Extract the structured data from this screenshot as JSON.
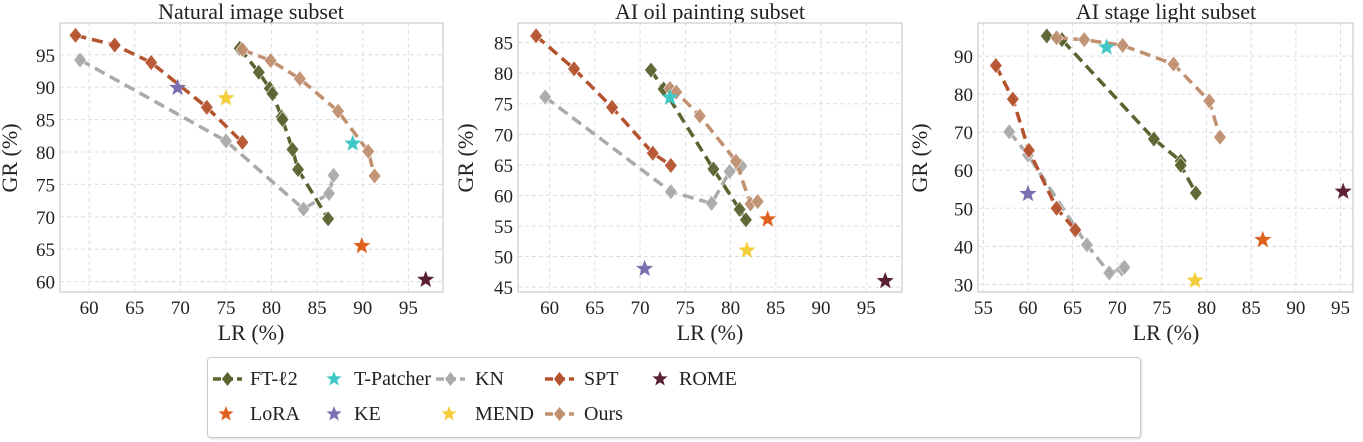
{
  "chart_data": [
    {
      "type": "scatter",
      "title": "Natural image subset",
      "xlabel": "LR (%)",
      "ylabel": "GR (%)",
      "xlim": [
        56.8,
        98.8
      ],
      "ylim": [
        58.4,
        99.9
      ],
      "xticks": [
        60,
        65,
        70,
        75,
        80,
        85,
        90,
        95
      ],
      "yticks": [
        60,
        65,
        70,
        75,
        80,
        85,
        90,
        95
      ],
      "grid": true,
      "series": [
        {
          "name": "FT-ℓ2",
          "kind": "line",
          "points": [
            [
              76.5,
              96.0
            ],
            [
              78.6,
              92.3
            ],
            [
              79.8,
              89.8
            ],
            [
              80.1,
              89.0
            ],
            [
              81.1,
              85.4
            ],
            [
              81.2,
              85.0
            ],
            [
              82.3,
              80.4
            ],
            [
              82.9,
              77.3
            ],
            [
              86.2,
              69.7
            ]
          ]
        },
        {
          "name": "KN",
          "kind": "line",
          "points": [
            [
              59.0,
              94.2
            ],
            [
              75.0,
              81.7
            ],
            [
              83.5,
              71.2
            ],
            [
              86.3,
              73.6
            ],
            [
              86.8,
              76.4
            ]
          ]
        },
        {
          "name": "SPT",
          "kind": "line",
          "points": [
            [
              58.5,
              98.0
            ],
            [
              62.8,
              96.5
            ],
            [
              66.8,
              93.8
            ],
            [
              72.9,
              86.9
            ],
            [
              76.8,
              81.5
            ]
          ]
        },
        {
          "name": "Ours",
          "kind": "line",
          "points": [
            [
              76.8,
              95.8
            ],
            [
              79.9,
              94.1
            ],
            [
              83.1,
              91.3
            ],
            [
              87.3,
              86.3
            ],
            [
              90.6,
              80.1
            ],
            [
              91.3,
              76.3
            ]
          ]
        },
        {
          "name": "T-Patcher",
          "kind": "star",
          "points": [
            [
              88.9,
              81.3
            ]
          ]
        },
        {
          "name": "LoRA",
          "kind": "star",
          "points": [
            [
              89.9,
              65.5
            ]
          ]
        },
        {
          "name": "KE",
          "kind": "star",
          "points": [
            [
              69.7,
              89.9
            ]
          ]
        },
        {
          "name": "MEND",
          "kind": "star",
          "points": [
            [
              75.0,
              88.3
            ]
          ]
        },
        {
          "name": "ROME",
          "kind": "star",
          "points": [
            [
              96.9,
              60.3
            ]
          ]
        }
      ]
    },
    {
      "type": "scatter",
      "title": "AI oil painting subset",
      "xlabel": "LR (%)",
      "ylabel": "GR (%)",
      "xlim": [
        56.5,
        98.95
      ],
      "ylim": [
        44.2,
        88.2
      ],
      "xticks": [
        60,
        65,
        70,
        75,
        80,
        85,
        90,
        95
      ],
      "yticks": [
        45,
        50,
        55,
        60,
        65,
        70,
        75,
        80,
        85
      ],
      "grid": true,
      "series": [
        {
          "name": "FT-ℓ2",
          "kind": "line",
          "points": [
            [
              71.2,
              80.5
            ],
            [
              72.6,
              77.4
            ],
            [
              78.1,
              64.3
            ],
            [
              81.0,
              57.7
            ],
            [
              81.7,
              56.0
            ]
          ]
        },
        {
          "name": "KN",
          "kind": "line",
          "points": [
            [
              59.5,
              76.1
            ],
            [
              73.4,
              60.6
            ],
            [
              77.9,
              58.7
            ],
            [
              79.9,
              63.9
            ],
            [
              81.2,
              64.8
            ]
          ]
        },
        {
          "name": "SPT",
          "kind": "line",
          "points": [
            [
              58.5,
              86.1
            ],
            [
              62.7,
              80.7
            ],
            [
              66.9,
              74.4
            ],
            [
              71.4,
              66.9
            ],
            [
              73.4,
              64.9
            ]
          ]
        },
        {
          "name": "Ours",
          "kind": "line",
          "points": [
            [
              73.3,
              77.5
            ],
            [
              74.0,
              76.9
            ],
            [
              76.6,
              73.0
            ],
            [
              80.6,
              65.6
            ],
            [
              82.2,
              58.6
            ],
            [
              83.0,
              59.0
            ]
          ]
        },
        {
          "name": "T-Patcher",
          "kind": "star",
          "points": [
            [
              73.3,
              76.0
            ]
          ]
        },
        {
          "name": "LoRA",
          "kind": "star",
          "points": [
            [
              84.1,
              56.1
            ]
          ]
        },
        {
          "name": "KE",
          "kind": "star",
          "points": [
            [
              70.5,
              48.0
            ]
          ]
        },
        {
          "name": "MEND",
          "kind": "star",
          "points": [
            [
              81.8,
              51.0
            ]
          ]
        },
        {
          "name": "ROME",
          "kind": "star",
          "points": [
            [
              97.1,
              46.0
            ]
          ]
        }
      ]
    },
    {
      "type": "scatter",
      "title": "AI stage light subset",
      "xlabel": "LR (%)",
      "ylabel": "GR (%)",
      "xlim": [
        54.4,
        96.4
      ],
      "ylim": [
        28.0,
        98.7
      ],
      "xticks": [
        55,
        60,
        65,
        70,
        75,
        80,
        85,
        90,
        95
      ],
      "yticks": [
        30,
        40,
        50,
        60,
        70,
        80,
        90
      ],
      "grid": true,
      "series": [
        {
          "name": "FT-ℓ2",
          "kind": "line",
          "points": [
            [
              62.1,
              95.3
            ],
            [
              63.8,
              94.3
            ],
            [
              74.1,
              68.2
            ],
            [
              77.1,
              62.4
            ],
            [
              77.1,
              61.3
            ],
            [
              78.8,
              54.0
            ]
          ]
        },
        {
          "name": "KN",
          "kind": "line",
          "points": [
            [
              57.9,
              70.1
            ],
            [
              60.0,
              64.0
            ],
            [
              66.6,
              40.4
            ],
            [
              69.1,
              33.0
            ],
            [
              70.5,
              34.0
            ],
            [
              70.8,
              34.5
            ]
          ]
        },
        {
          "name": "SPT",
          "kind": "line",
          "points": [
            [
              56.4,
              87.5
            ],
            [
              58.3,
              78.7
            ],
            [
              60.1,
              65.2
            ],
            [
              63.2,
              50.0
            ],
            [
              65.3,
              44.3
            ]
          ]
        },
        {
          "name": "Ours",
          "kind": "line",
          "points": [
            [
              63.2,
              94.8
            ],
            [
              66.3,
              94.3
            ],
            [
              70.6,
              92.8
            ],
            [
              76.3,
              87.9
            ],
            [
              80.3,
              78.2
            ],
            [
              81.5,
              68.7
            ]
          ]
        },
        {
          "name": "T-Patcher",
          "kind": "star",
          "points": [
            [
              68.8,
              92.3
            ]
          ]
        },
        {
          "name": "LoRA",
          "kind": "star",
          "points": [
            [
              86.3,
              41.7
            ]
          ]
        },
        {
          "name": "KE",
          "kind": "star",
          "points": [
            [
              60.0,
              53.8
            ]
          ]
        },
        {
          "name": "MEND",
          "kind": "star",
          "points": [
            [
              78.7,
              31.0
            ]
          ]
        },
        {
          "name": "ROME",
          "kind": "star",
          "points": [
            [
              95.3,
              54.4
            ]
          ]
        }
      ]
    }
  ],
  "colors": {
    "FT-ℓ2": "#5b6330",
    "T-Patcher": "#3ec8c8",
    "KN": "#aaaaaa",
    "SPT": "#b5532e",
    "ROME": "#5a2035",
    "LoRA": "#e0601e",
    "KE": "#7a6fb0",
    "MEND": "#f5cc3a",
    "Ours": "#c09070"
  },
  "legend": {
    "placement": "bottom-center",
    "items": [
      {
        "label": "FT-ℓ2",
        "kind": "line"
      },
      {
        "label": "T-Patcher",
        "kind": "star"
      },
      {
        "label": "KN",
        "kind": "line"
      },
      {
        "label": "SPT",
        "kind": "line"
      },
      {
        "label": "ROME",
        "kind": "star"
      },
      {
        "label": "LoRA",
        "kind": "star"
      },
      {
        "label": "KE",
        "kind": "star"
      },
      {
        "label": "MEND",
        "kind": "star"
      },
      {
        "label": "Ours",
        "kind": "line"
      }
    ]
  }
}
